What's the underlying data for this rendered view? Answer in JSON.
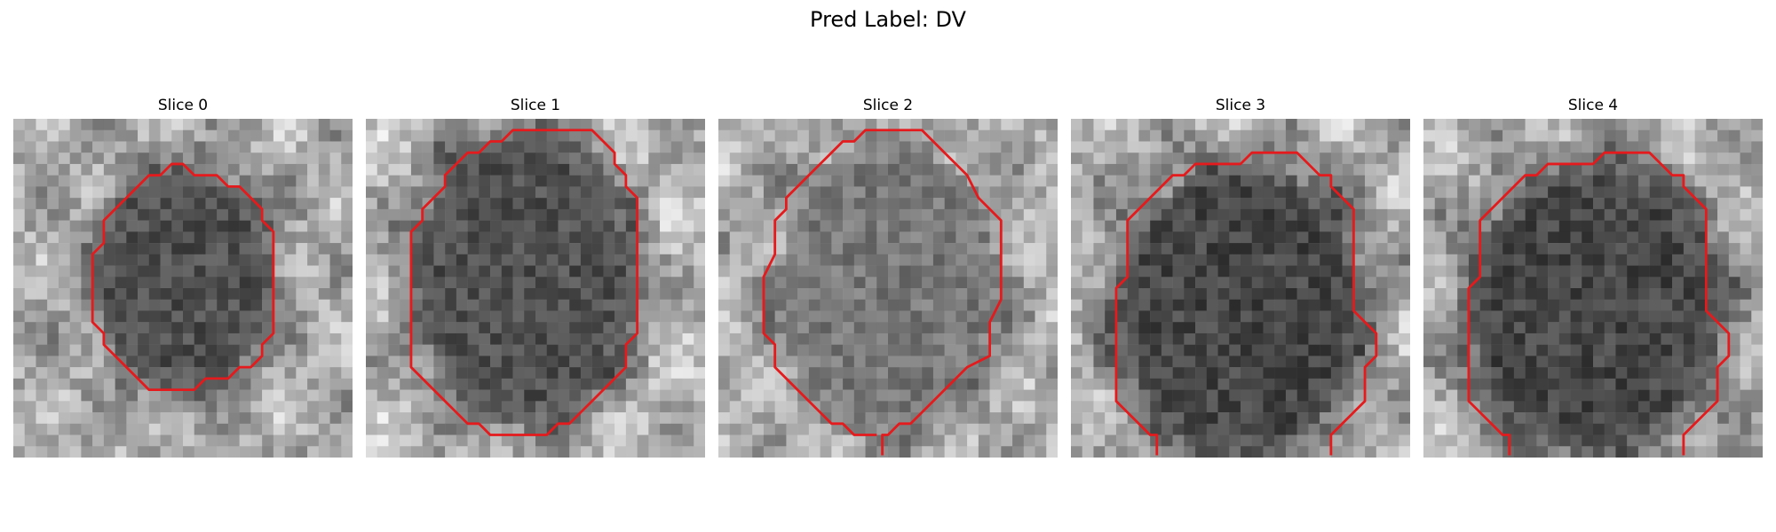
{
  "figure": {
    "title": "Pred Label: DV"
  },
  "slices": [
    {
      "title": "Slice 0"
    },
    {
      "title": "Slice 1"
    },
    {
      "title": "Slice 2"
    },
    {
      "title": "Slice 3"
    },
    {
      "title": "Slice 4"
    }
  ],
  "colors": {
    "background": "#ffffff",
    "contour": "#e41a1c"
  }
}
